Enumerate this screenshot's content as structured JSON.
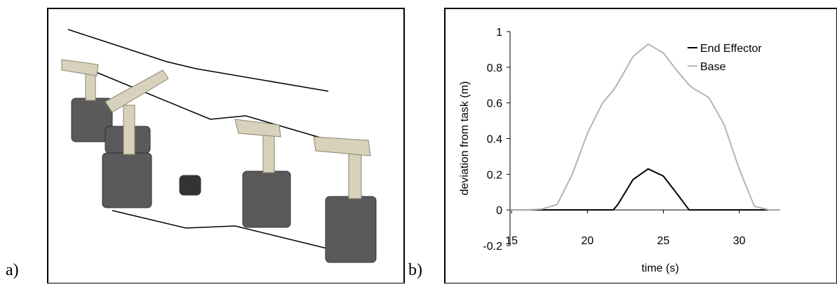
{
  "panel_labels": [
    "a)",
    "b)"
  ],
  "chart_data": {
    "type": "line",
    "x_label": "time (s)",
    "y_label": "deviation from task (m)",
    "x": [
      14.9,
      16,
      17,
      18,
      19,
      20,
      21,
      21.7,
      22,
      23,
      24,
      25,
      26,
      26.7,
      27,
      28,
      29,
      30,
      31,
      32,
      32.7
    ],
    "series": [
      {
        "name": "End Effector",
        "color": "#000000",
        "values": [
          0,
          0,
          0,
          0,
          0,
          0,
          0,
          0,
          0.03,
          0.17,
          0.23,
          0.19,
          0.08,
          0,
          0,
          0,
          0,
          0,
          0,
          0,
          0
        ]
      },
      {
        "name": "Base",
        "color": "#b4b4b4",
        "values": [
          0,
          0,
          0.005,
          0.03,
          0.2,
          0.43,
          0.6,
          0.67,
          0.71,
          0.86,
          0.93,
          0.88,
          0.77,
          0.7,
          0.68,
          0.63,
          0.48,
          0.23,
          0.02,
          0,
          0
        ]
      }
    ],
    "xlim": [
      14.9,
      32.7
    ],
    "xticks": [
      15,
      20,
      25,
      30
    ],
    "ylim": [
      -0.2,
      1
    ],
    "yticks": [
      -0.2,
      0,
      0.2,
      0.4,
      0.6,
      0.8,
      1
    ],
    "legend": "upper right",
    "grid": false
  }
}
